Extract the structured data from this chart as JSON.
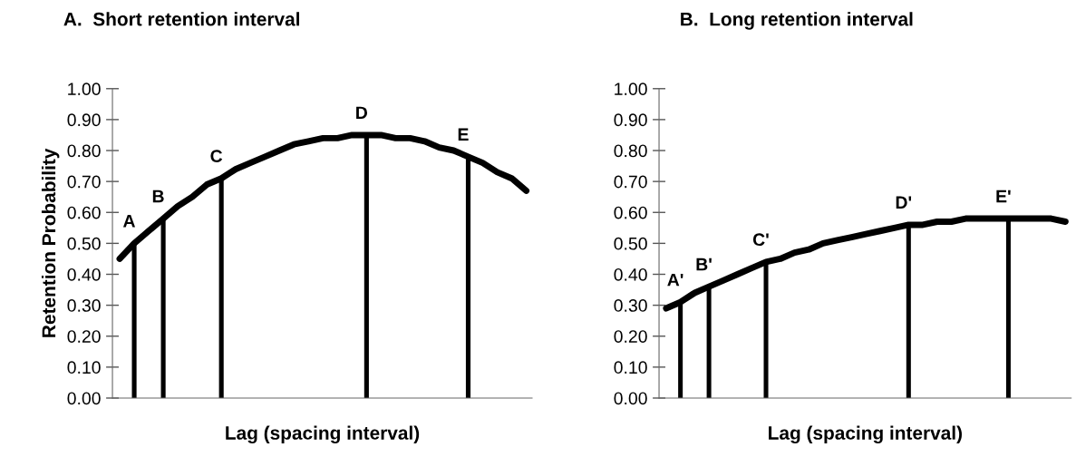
{
  "chart_data": [
    {
      "type": "line",
      "title": "A.  Short retention interval",
      "xlabel": "Lag (spacing interval)",
      "ylabel": "Retention Probability",
      "categories": [
        null,
        null,
        null,
        null,
        null,
        null,
        null,
        null,
        null,
        null,
        null,
        null,
        null,
        null,
        null,
        null,
        null,
        null,
        null,
        null,
        null,
        null,
        null,
        null,
        null,
        null,
        null,
        null,
        null
      ],
      "ylim": [
        0,
        1
      ],
      "yticks": [
        {
          "value": 0,
          "label": "0.00"
        },
        {
          "value": 0.1,
          "label": "0.10"
        },
        {
          "value": 0.2,
          "label": "0.20"
        },
        {
          "value": 0.3,
          "label": "0.30"
        },
        {
          "value": 0.4,
          "label": "0.40"
        },
        {
          "value": 0.5,
          "label": "0.50"
        },
        {
          "value": 0.6,
          "label": "0.60"
        },
        {
          "value": 0.7,
          "label": "0.70"
        },
        {
          "value": 0.8,
          "label": "0.80"
        },
        {
          "value": 0.9,
          "label": "0.90"
        },
        {
          "value": 1,
          "label": "1.00"
        }
      ],
      "tick_labels": "y",
      "series": [
        {
          "color": "#000000",
          "values": [
            0.45,
            0.5,
            0.54,
            0.58,
            0.62,
            0.65,
            0.69,
            0.71,
            0.74,
            0.76,
            0.78,
            0.8,
            0.82,
            0.83,
            0.84,
            0.84,
            0.85,
            0.85,
            0.85,
            0.84,
            0.84,
            0.83,
            0.81,
            0.8,
            0.78,
            0.76,
            0.73,
            0.71,
            0.67
          ]
        },
        {
          "type": "bar",
          "color": "#000000",
          "values": [
            null,
            0.5,
            null,
            0.58,
            null,
            null,
            null,
            0.71,
            null,
            null,
            null,
            null,
            null,
            null,
            null,
            null,
            null,
            0.85,
            null,
            null,
            null,
            null,
            null,
            null,
            0.78,
            null,
            null,
            null,
            null
          ],
          "value_labels": [
            null,
            "A",
            null,
            "B",
            null,
            null,
            null,
            "C",
            null,
            null,
            null,
            null,
            null,
            null,
            null,
            null,
            null,
            "D",
            null,
            null,
            null,
            null,
            null,
            null,
            "E",
            null,
            null,
            null,
            null
          ]
        }
      ]
    },
    {
      "type": "line",
      "title": "B.  Long retention interval",
      "xlabel": "Lag (spacing interval)",
      "categories": [
        null,
        null,
        null,
        null,
        null,
        null,
        null,
        null,
        null,
        null,
        null,
        null,
        null,
        null,
        null,
        null,
        null,
        null,
        null,
        null,
        null,
        null,
        null,
        null,
        null,
        null,
        null,
        null,
        null
      ],
      "ylim": [
        0,
        1
      ],
      "yticks": [
        {
          "value": 0,
          "label": "0.00"
        },
        {
          "value": 0.1,
          "label": "0.10"
        },
        {
          "value": 0.2,
          "label": "0.20"
        },
        {
          "value": 0.3,
          "label": "0.30"
        },
        {
          "value": 0.4,
          "label": "0.40"
        },
        {
          "value": 0.5,
          "label": "0.50"
        },
        {
          "value": 0.6,
          "label": "0.60"
        },
        {
          "value": 0.7,
          "label": "0.70"
        },
        {
          "value": 0.8,
          "label": "0.80"
        },
        {
          "value": 0.9,
          "label": "0.90"
        },
        {
          "value": 1,
          "label": "1.00"
        }
      ],
      "tick_labels": "y",
      "series": [
        {
          "color": "#000000",
          "values": [
            0.29,
            0.31,
            0.34,
            0.36,
            0.38,
            0.4,
            0.42,
            0.44,
            0.45,
            0.47,
            0.48,
            0.5,
            0.51,
            0.52,
            0.53,
            0.54,
            0.55,
            0.56,
            0.56,
            0.57,
            0.57,
            0.58,
            0.58,
            0.58,
            0.58,
            0.58,
            0.58,
            0.58,
            0.57
          ]
        },
        {
          "type": "bar",
          "color": "#000000",
          "values": [
            null,
            0.31,
            null,
            0.36,
            null,
            null,
            null,
            0.44,
            null,
            null,
            null,
            null,
            null,
            null,
            null,
            null,
            null,
            0.56,
            null,
            null,
            null,
            null,
            null,
            null,
            0.58,
            null,
            null,
            null,
            null
          ],
          "value_labels": [
            null,
            "A'",
            null,
            "B'",
            null,
            null,
            null,
            "C'",
            null,
            null,
            null,
            null,
            null,
            null,
            null,
            null,
            null,
            "D'",
            null,
            null,
            null,
            null,
            null,
            null,
            "E'",
            null,
            null,
            null,
            null
          ]
        }
      ]
    }
  ]
}
